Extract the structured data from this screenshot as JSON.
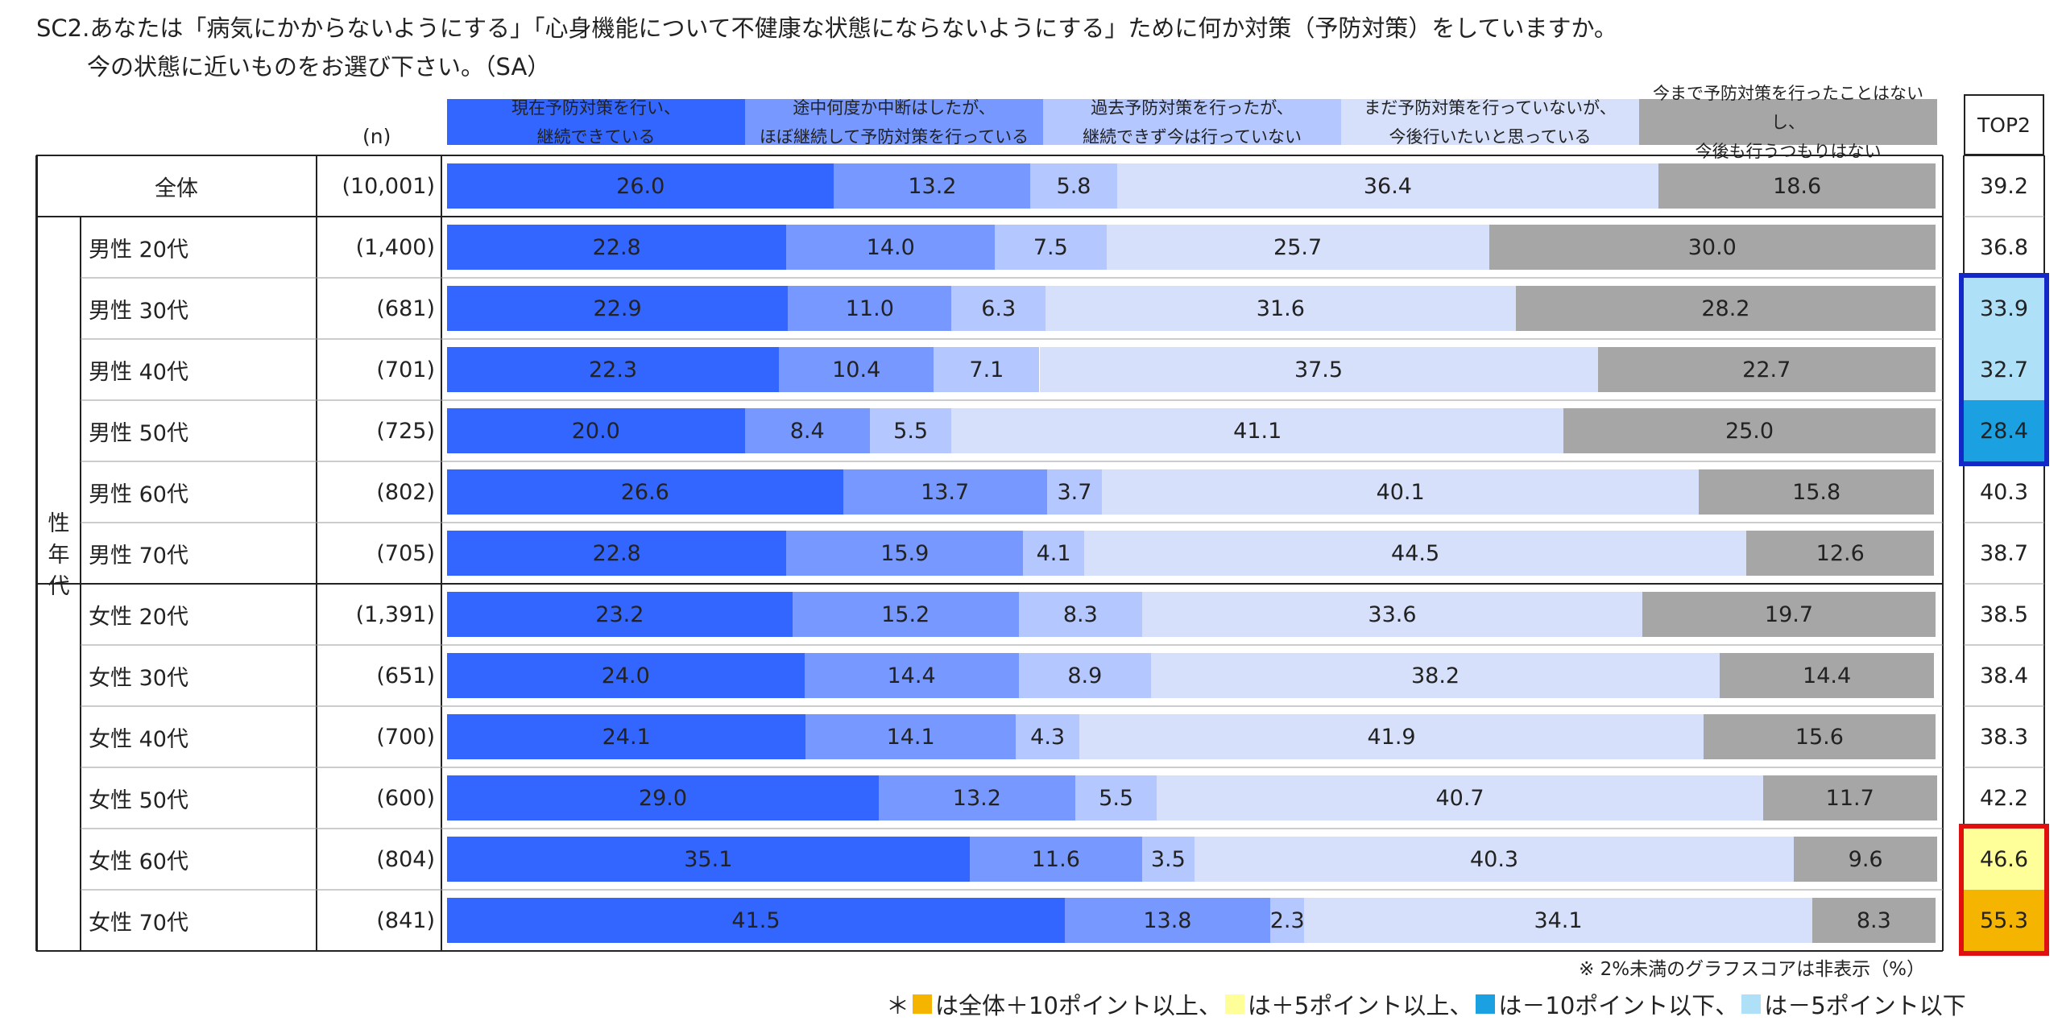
{
  "title": {
    "line1": "SC2.あなたは「病気にかからないようにする」「心身機能について不健康な状態にならないようにする」ために何か対策（予防対策）をしていますか。",
    "line2": "今の状態に近いものをお選び下さい。（SA）"
  },
  "n_header": "(n)",
  "top2_header": "TOP2",
  "group_label": "性年代",
  "notes": {
    "footnote": "※ 2%未満のグラフスコアは非表示（%）",
    "legend_prefix": "＊",
    "legend_parts": [
      {
        "color": "#f5b400",
        "text": "は全体＋10ポイント以上、"
      },
      {
        "color": "#ffff99",
        "text": "は＋5ポイント以上、"
      },
      {
        "color": "#1ba1e2",
        "text": "は－10ポイント以下、"
      },
      {
        "color": "#aee0f8",
        "text": "は－5ポイント以下"
      }
    ]
  },
  "chart_data": {
    "type": "bar",
    "stacked": true,
    "orientation": "horizontal",
    "unit": "%",
    "series": [
      {
        "name": "現在予防対策を行い、継続できている",
        "label_lines": [
          "現在予防対策を行い、",
          "継続できている"
        ],
        "color": "#3366ff",
        "values": [
          26.0,
          22.8,
          22.9,
          22.3,
          20.0,
          26.6,
          22.8,
          23.2,
          24.0,
          24.1,
          29.0,
          35.1,
          41.5
        ]
      },
      {
        "name": "途中何度か中断はしたが、ほぼ継続して予防対策を行っている",
        "label_lines": [
          "途中何度か中断はしたが、",
          "ほぼ継続して予防対策を行っている"
        ],
        "color": "#7799ff",
        "values": [
          13.2,
          14.0,
          11.0,
          10.4,
          8.4,
          13.7,
          15.9,
          15.2,
          14.4,
          14.1,
          13.2,
          11.6,
          13.8
        ]
      },
      {
        "name": "過去予防対策を行ったが、継続できず今は行っていない",
        "label_lines": [
          "過去予防対策を行ったが、",
          "継続できず今は行っていない"
        ],
        "color": "#b5c7ff",
        "values": [
          5.8,
          7.5,
          6.3,
          7.1,
          5.5,
          3.7,
          4.1,
          8.3,
          8.9,
          4.3,
          5.5,
          3.5,
          2.3
        ]
      },
      {
        "name": "まだ予防対策を行っていないが、今後行いたいと思っている",
        "label_lines": [
          "まだ予防対策を行っていないが、",
          "今後行いたいと思っている"
        ],
        "color": "#d6e0fa",
        "values": [
          36.4,
          25.7,
          31.6,
          37.5,
          41.1,
          40.1,
          44.5,
          33.6,
          38.2,
          41.9,
          40.7,
          40.3,
          34.1
        ]
      },
      {
        "name": "今まで予防対策を行ったことはないし、今後も行うつもりはない",
        "label_lines": [
          "今まで予防対策を行ったことはないし、",
          "今後も行うつもりはない"
        ],
        "color": "#a6a6a6",
        "values": [
          18.6,
          30.0,
          28.2,
          22.7,
          25.0,
          15.8,
          12.6,
          19.7,
          14.4,
          15.6,
          11.7,
          9.6,
          8.3
        ]
      }
    ],
    "categories": [
      "全体",
      "男性 20代",
      "男性 30代",
      "男性 40代",
      "男性 50代",
      "男性 60代",
      "男性 70代",
      "女性 20代",
      "女性 30代",
      "女性 40代",
      "女性 50代",
      "女性 60代",
      "女性 70代"
    ],
    "n": [
      "(10,001)",
      "(1,400)",
      "(681)",
      "(701)",
      "(725)",
      "(802)",
      "(705)",
      "(1,391)",
      "(651)",
      "(700)",
      "(600)",
      "(804)",
      "(841)"
    ],
    "top2": [
      "39.2",
      "36.8",
      "33.9",
      "32.7",
      "28.4",
      "40.3",
      "38.7",
      "38.5",
      "38.4",
      "38.3",
      "42.2",
      "46.6",
      "55.3"
    ],
    "top2_highlight": [
      "",
      "",
      "#aee0f8",
      "#aee0f8",
      "#1ba1e2",
      "",
      "",
      "",
      "",
      "",
      "",
      "#ffff99",
      "#f5b400"
    ],
    "xlim": [
      0,
      100
    ],
    "hide_labels_below": 2
  }
}
